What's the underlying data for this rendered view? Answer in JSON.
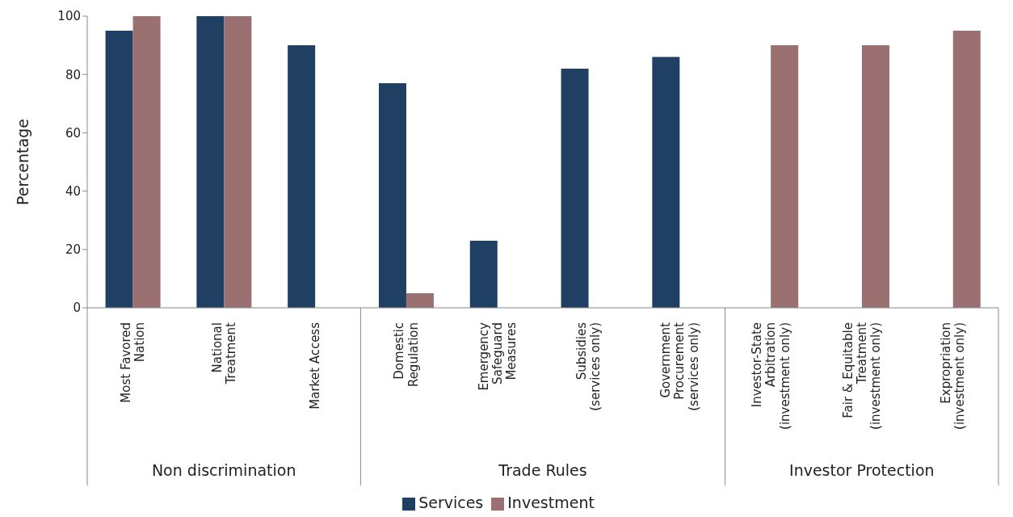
{
  "chart_data": {
    "type": "bar",
    "ylabel": "Percentage",
    "categories": [
      "Most Favored Nation",
      "National Treatment",
      "Market Access",
      "Domestic Regulation",
      "Emergency Safeguard Measures",
      "Subsidies (services only)",
      "Government Procurement (services only)",
      "Investor-State Arbitration (investment only)",
      "Fair & Equitable Treatment (investment only)",
      "Expropriation (investment only)"
    ],
    "series": [
      {
        "name": "Services",
        "color": "#1f3f63",
        "values": [
          95,
          100,
          90,
          77,
          23,
          82,
          86,
          null,
          null,
          null
        ]
      },
      {
        "name": "Investment",
        "color": "#9a7070",
        "values": [
          100,
          100,
          null,
          5,
          null,
          null,
          null,
          90,
          90,
          95
        ]
      }
    ],
    "annotations": [
      "Non discrimination",
      "Trade Rules",
      "Investor Protection"
    ],
    "ylim": [
      0,
      100
    ],
    "yticks": [
      0,
      20,
      40,
      60,
      80,
      100
    ],
    "grid": false,
    "legend": "bottom"
  }
}
